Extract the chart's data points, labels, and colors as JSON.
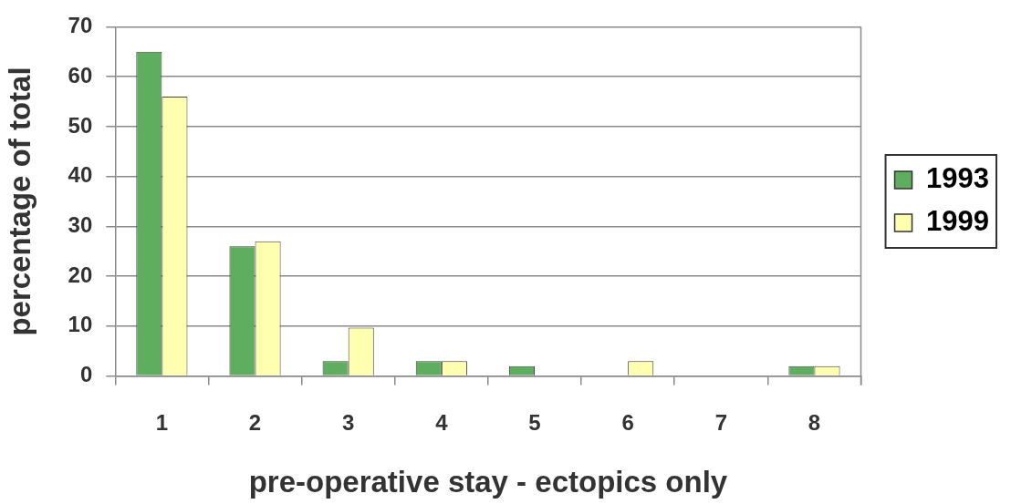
{
  "chart_data": {
    "type": "bar",
    "xlabel": "pre-operative stay - ectopics only",
    "ylabel": "percentage of total",
    "categories": [
      "1",
      "2",
      "3",
      "4",
      "5",
      "6",
      "7",
      "8"
    ],
    "series": [
      {
        "name": "1993",
        "color": "#5fae5f",
        "values": [
          65,
          26,
          3,
          3,
          2,
          0,
          0,
          2
        ]
      },
      {
        "name": "1999",
        "color": "#ffffb0",
        "values": [
          56,
          27,
          9.7,
          3,
          0,
          3,
          0,
          2
        ]
      }
    ],
    "ylim": [
      0,
      70
    ],
    "yticks": [
      0,
      10,
      20,
      30,
      40,
      50,
      60,
      70
    ],
    "grid": "y",
    "legend": "right"
  }
}
